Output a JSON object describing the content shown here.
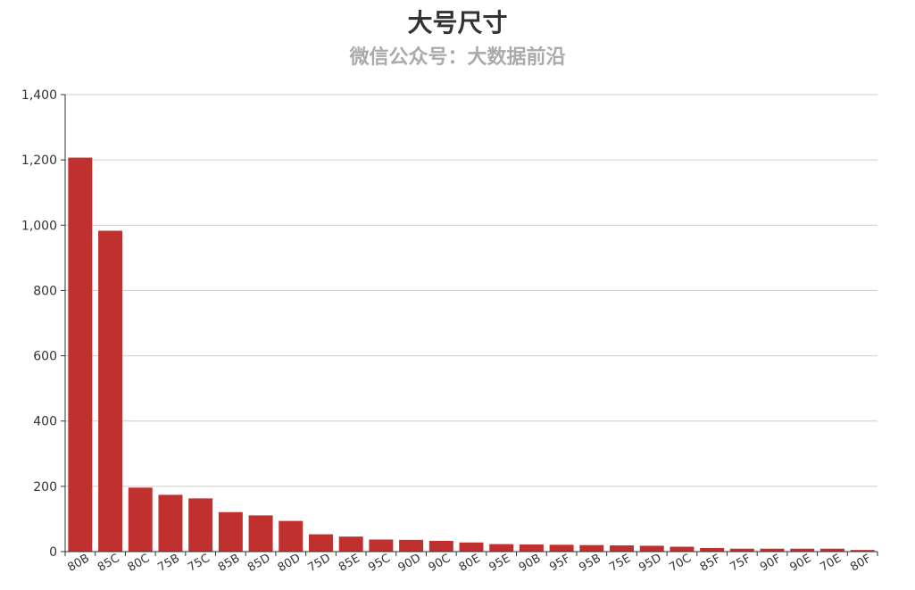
{
  "chart_data": {
    "type": "bar",
    "title": "大号尺寸",
    "subtitle": "微信公众号：大数据前沿",
    "xlabel": "",
    "ylabel": "",
    "ylim": [
      0,
      1400
    ],
    "yticks": [
      0,
      200,
      400,
      600,
      800,
      1000,
      1200,
      1400
    ],
    "ytick_labels": [
      "0",
      "200",
      "400",
      "600",
      "800",
      "1,000",
      "1,200",
      "1,400"
    ],
    "grid": true,
    "legend": "none",
    "bar_color": "#c0302f",
    "categories": [
      "80B",
      "85C",
      "80C",
      "75B",
      "75C",
      "85B",
      "85D",
      "80D",
      "75D",
      "85E",
      "95C",
      "90D",
      "90C",
      "80E",
      "95E",
      "90B",
      "95F",
      "95B",
      "75E",
      "95D",
      "70C",
      "85F",
      "75F",
      "90F",
      "90E",
      "70E",
      "80F"
    ],
    "values": [
      1207,
      983,
      196,
      174,
      163,
      121,
      111,
      94,
      53,
      46,
      37,
      36,
      33,
      28,
      23,
      22,
      21,
      20,
      19,
      18,
      15,
      11,
      9,
      9,
      9,
      9,
      5
    ]
  }
}
